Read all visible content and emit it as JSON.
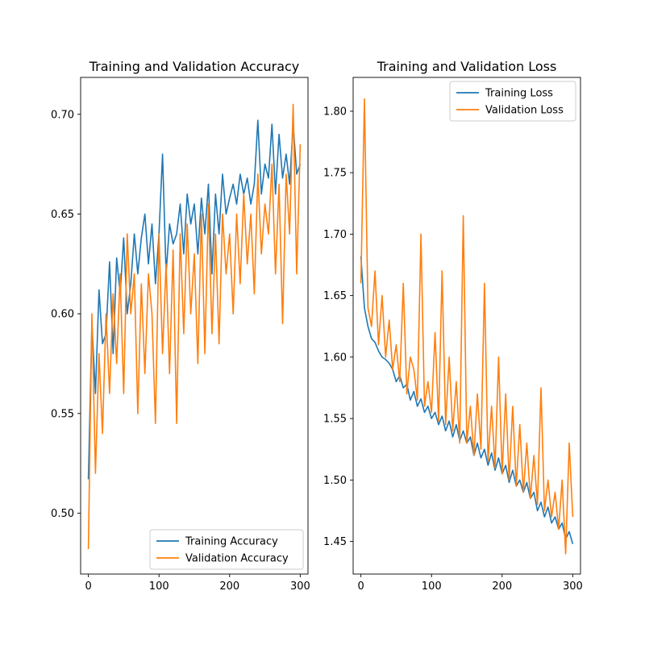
{
  "colors": {
    "training": "#1f77b4",
    "validation": "#ff7f0e",
    "axis": "#000000",
    "legend_frame": "#cccccc",
    "background": "#ffffff"
  },
  "chart_data": [
    {
      "type": "line",
      "title": "Training and Validation Accuracy",
      "xlabel": "",
      "ylabel": "",
      "xlim": [
        -11,
        311
      ],
      "ylim": [
        0.4695,
        0.7185
      ],
      "xticks": [
        0,
        100,
        200,
        300
      ],
      "xtick_labels": [
        "0",
        "100",
        "200",
        "300"
      ],
      "yticks": [
        0.5,
        0.55,
        0.6,
        0.65,
        0.7
      ],
      "ytick_labels": [
        "0.50",
        "0.55",
        "0.60",
        "0.65",
        "0.70"
      ],
      "grid": false,
      "legend_position": "bottom-right",
      "x": [
        0,
        5,
        10,
        15,
        20,
        25,
        30,
        35,
        40,
        45,
        50,
        55,
        60,
        65,
        70,
        75,
        80,
        85,
        90,
        95,
        100,
        105,
        110,
        115,
        120,
        125,
        130,
        135,
        140,
        145,
        150,
        155,
        160,
        165,
        170,
        175,
        180,
        185,
        190,
        195,
        200,
        205,
        210,
        215,
        220,
        225,
        230,
        235,
        240,
        245,
        250,
        255,
        260,
        265,
        270,
        275,
        280,
        285,
        290,
        295,
        300
      ],
      "series": [
        {
          "name": "Training Accuracy",
          "values": [
            0.517,
            0.595,
            0.56,
            0.612,
            0.585,
            0.59,
            0.626,
            0.58,
            0.628,
            0.61,
            0.638,
            0.6,
            0.615,
            0.64,
            0.62,
            0.638,
            0.65,
            0.625,
            0.645,
            0.615,
            0.64,
            0.68,
            0.62,
            0.645,
            0.635,
            0.64,
            0.655,
            0.63,
            0.66,
            0.645,
            0.655,
            0.63,
            0.658,
            0.64,
            0.665,
            0.62,
            0.66,
            0.64,
            0.67,
            0.65,
            0.658,
            0.665,
            0.655,
            0.67,
            0.66,
            0.668,
            0.655,
            0.665,
            0.697,
            0.66,
            0.675,
            0.668,
            0.695,
            0.66,
            0.69,
            0.668,
            0.68,
            0.665,
            0.695,
            0.67,
            0.675
          ]
        },
        {
          "name": "Validation Accuracy",
          "values": [
            0.482,
            0.6,
            0.52,
            0.58,
            0.54,
            0.6,
            0.56,
            0.61,
            0.575,
            0.62,
            0.56,
            0.64,
            0.6,
            0.62,
            0.55,
            0.615,
            0.57,
            0.62,
            0.6,
            0.545,
            0.64,
            0.58,
            0.625,
            0.57,
            0.632,
            0.545,
            0.64,
            0.59,
            0.645,
            0.6,
            0.63,
            0.575,
            0.65,
            0.58,
            0.655,
            0.59,
            0.64,
            0.585,
            0.65,
            0.62,
            0.64,
            0.6,
            0.65,
            0.615,
            0.66,
            0.625,
            0.65,
            0.61,
            0.67,
            0.63,
            0.655,
            0.64,
            0.675,
            0.62,
            0.665,
            0.595,
            0.67,
            0.64,
            0.705,
            0.62,
            0.685
          ]
        }
      ]
    },
    {
      "type": "line",
      "title": "Training and Validation Loss",
      "xlabel": "",
      "ylabel": "",
      "xlim": [
        -11,
        311
      ],
      "ylim": [
        1.4235,
        1.8275
      ],
      "xticks": [
        0,
        100,
        200,
        300
      ],
      "xtick_labels": [
        "0",
        "100",
        "200",
        "300"
      ],
      "yticks": [
        1.45,
        1.5,
        1.55,
        1.6,
        1.65,
        1.7,
        1.75,
        1.8
      ],
      "ytick_labels": [
        "1.45",
        "1.50",
        "1.55",
        "1.60",
        "1.65",
        "1.70",
        "1.75",
        "1.80"
      ],
      "grid": false,
      "legend_position": "top-right",
      "x": [
        0,
        5,
        10,
        15,
        20,
        25,
        30,
        35,
        40,
        45,
        50,
        55,
        60,
        65,
        70,
        75,
        80,
        85,
        90,
        95,
        100,
        105,
        110,
        115,
        120,
        125,
        130,
        135,
        140,
        145,
        150,
        155,
        160,
        165,
        170,
        175,
        180,
        185,
        190,
        195,
        200,
        205,
        210,
        215,
        220,
        225,
        230,
        235,
        240,
        245,
        250,
        255,
        260,
        265,
        270,
        275,
        280,
        285,
        290,
        295,
        300
      ],
      "series": [
        {
          "name": "Training Loss",
          "values": [
            1.682,
            1.64,
            1.625,
            1.615,
            1.612,
            1.605,
            1.6,
            1.598,
            1.595,
            1.59,
            1.58,
            1.585,
            1.575,
            1.578,
            1.565,
            1.572,
            1.56,
            1.566,
            1.555,
            1.56,
            1.55,
            1.555,
            1.545,
            1.552,
            1.54,
            1.548,
            1.535,
            1.545,
            1.532,
            1.54,
            1.53,
            1.535,
            1.52,
            1.53,
            1.518,
            1.525,
            1.512,
            1.522,
            1.508,
            1.518,
            1.505,
            1.512,
            1.498,
            1.508,
            1.495,
            1.5,
            1.49,
            1.498,
            1.485,
            1.49,
            1.475,
            1.482,
            1.47,
            1.478,
            1.465,
            1.47,
            1.46,
            1.465,
            1.452,
            1.458,
            1.448
          ]
        },
        {
          "name": "Validation Loss",
          "values": [
            1.66,
            1.81,
            1.64,
            1.625,
            1.67,
            1.61,
            1.65,
            1.6,
            1.63,
            1.59,
            1.61,
            1.58,
            1.66,
            1.57,
            1.6,
            1.59,
            1.565,
            1.7,
            1.56,
            1.58,
            1.555,
            1.62,
            1.548,
            1.67,
            1.545,
            1.6,
            1.54,
            1.58,
            1.53,
            1.715,
            1.53,
            1.56,
            1.52,
            1.57,
            1.525,
            1.66,
            1.515,
            1.56,
            1.51,
            1.6,
            1.505,
            1.57,
            1.5,
            1.56,
            1.495,
            1.545,
            1.49,
            1.53,
            1.485,
            1.52,
            1.48,
            1.575,
            1.475,
            1.5,
            1.47,
            1.49,
            1.46,
            1.5,
            1.44,
            1.53,
            1.47
          ]
        }
      ]
    }
  ]
}
